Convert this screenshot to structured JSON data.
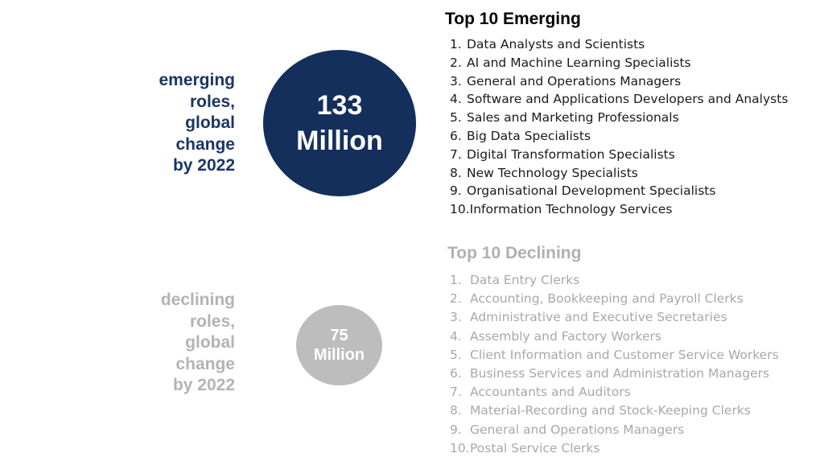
{
  "emerging": {
    "side_label_lines": [
      "emerging",
      "roles,",
      "global",
      "change",
      "by 2022"
    ],
    "circle_value": "133",
    "circle_unit": "Million",
    "heading": "Top 10 Emerging",
    "items": [
      {
        "num": "1.",
        "label": "Data Analysts and Scientists"
      },
      {
        "num": "2.",
        "label": "AI and Machine Learning Specialists"
      },
      {
        "num": "3.",
        "label": "General and Operations Managers"
      },
      {
        "num": "4.",
        "label": "Software and Applications Developers and Analysts"
      },
      {
        "num": "5.",
        "label": "Sales and Marketing Professionals"
      },
      {
        "num": "6.",
        "label": "Big Data Specialists"
      },
      {
        "num": "7.",
        "label": "Digital Transformation Specialists"
      },
      {
        "num": "8.",
        "label": "New Technology Specialists"
      },
      {
        "num": "9.",
        "label": "Organisational Development Specialists"
      },
      {
        "num": "10.",
        "label": "Information Technology Services"
      }
    ],
    "colors": {
      "circle": "#142f5c",
      "label": "#1b3565"
    }
  },
  "declining": {
    "side_label_lines": [
      "declining",
      "roles,",
      "global",
      "change",
      "by 2022"
    ],
    "circle_value": "75",
    "circle_unit": "Million",
    "heading": "Top 10 Declining",
    "items": [
      {
        "num": "1.",
        "label": "Data Entry Clerks"
      },
      {
        "num": "2.",
        "label": "Accounting,  Bookkeeping and Payroll Clerks"
      },
      {
        "num": "3.",
        "label": "Administrative and Executive Secretaries"
      },
      {
        "num": "4.",
        "label": "Assembly and Factory Workers"
      },
      {
        "num": "5.",
        "label": "Client Information and Customer Service Workers"
      },
      {
        "num": "6.",
        "label": "Business Services and Administration Managers"
      },
      {
        "num": "7.",
        "label": "Accountants and Auditors"
      },
      {
        "num": "8.",
        "label": "Material-Recording and Stock-Keeping Clerks"
      },
      {
        "num": "9.",
        "label": "General and Operations Managers"
      },
      {
        "num": "10.",
        "label": "Postal Service Clerks"
      }
    ],
    "colors": {
      "circle": "#bdbdbd",
      "label": "#b3b3b3"
    }
  }
}
